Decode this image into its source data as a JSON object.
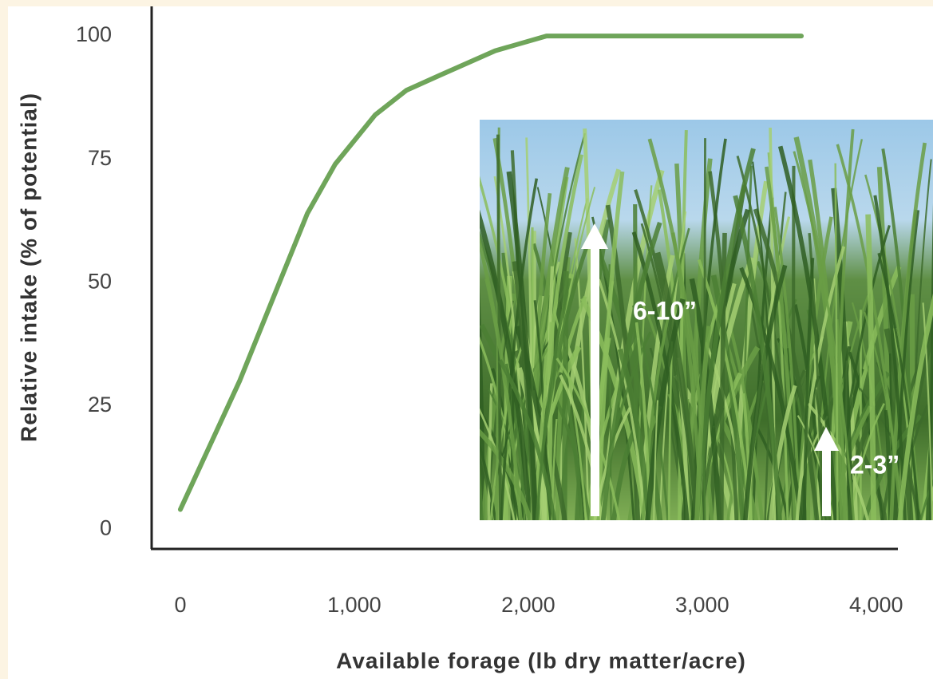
{
  "chart_data": {
    "type": "line",
    "x_label": "Available forage (lb dry matter/acre)",
    "y_label": "Relative intake (% of potential)",
    "x": [
      0,
      340,
      730,
      890,
      1120,
      1300,
      1490,
      1810,
      2105,
      3570
    ],
    "values": [
      4,
      30,
      64,
      74,
      84,
      89,
      92,
      97,
      100,
      100
    ],
    "color": "#6fa55a",
    "xlim": [
      -165,
      4125
    ],
    "ylim": [
      -4,
      106
    ],
    "xticks": [
      0,
      {
        "value": 1000,
        "label": "1,000"
      },
      {
        "value": 2000,
        "label": "2,000"
      },
      {
        "value": 3000,
        "label": "3,000"
      },
      {
        "value": 4000,
        "label": "4,000"
      }
    ],
    "yticks": [
      0,
      25,
      50,
      75,
      100
    ],
    "annotations": [
      "6-10”",
      "2-3”"
    ]
  }
}
